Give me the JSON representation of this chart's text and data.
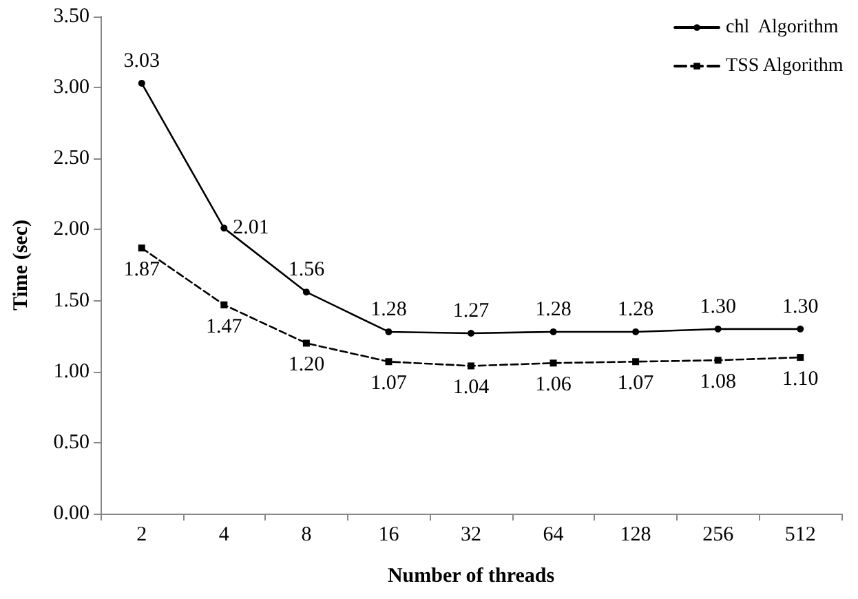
{
  "chart_data": {
    "type": "line",
    "xlabel": "Number of threads",
    "ylabel": "Time (sec)",
    "categories": [
      "2",
      "4",
      "8",
      "16",
      "32",
      "64",
      "128",
      "256",
      "512"
    ],
    "series": [
      {
        "name": "chl  Algorithm",
        "color": "#000000",
        "marker": "circle",
        "line_style": "solid",
        "values": [
          3.03,
          2.01,
          1.56,
          1.28,
          1.27,
          1.28,
          1.28,
          1.3,
          1.3
        ],
        "value_labels": [
          "3.03",
          "2.01",
          "1.56",
          "1.28",
          "1.27",
          "1.28",
          "1.28",
          "1.30",
          "1.30"
        ]
      },
      {
        "name": "TSS Algorithm",
        "color": "#000000",
        "marker": "square",
        "line_style": "dashed",
        "values": [
          1.87,
          1.47,
          1.2,
          1.07,
          1.04,
          1.06,
          1.07,
          1.08,
          1.1
        ],
        "value_labels": [
          "1.87",
          "1.47",
          "1.20",
          "1.07",
          "1.04",
          "1.06",
          "1.07",
          "1.08",
          "1.10"
        ]
      }
    ],
    "ylim": [
      0,
      3.5
    ],
    "yticks": [
      {
        "value": 0,
        "label": "0.00"
      },
      {
        "value": 0.5,
        "label": "0.50"
      },
      {
        "value": 1,
        "label": "1.00"
      },
      {
        "value": 1.5,
        "label": "1.50"
      },
      {
        "value": 2,
        "label": "2.00"
      },
      {
        "value": 2.5,
        "label": "2.50"
      },
      {
        "value": 3,
        "label": "3.00"
      },
      {
        "value": 3.5,
        "label": "3.50"
      }
    ],
    "grid": false,
    "legend": "top right"
  }
}
